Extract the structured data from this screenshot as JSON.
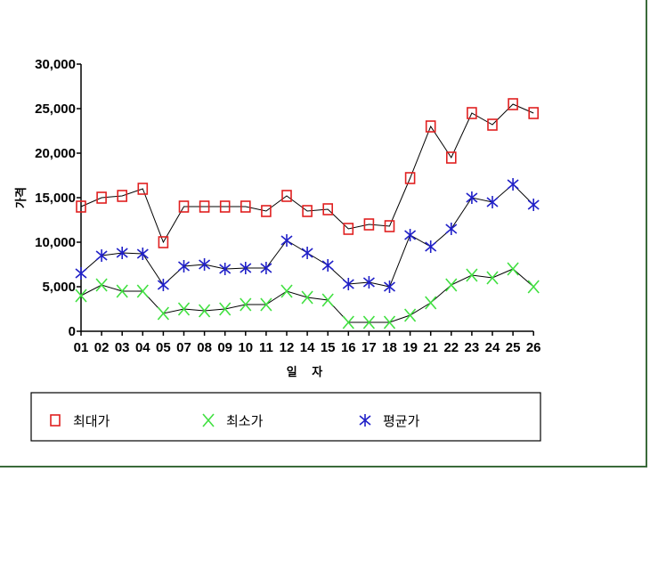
{
  "chart_data": {
    "type": "line",
    "title": "",
    "xlabel": "일 자",
    "ylabel": "가격",
    "categories": [
      "01",
      "02",
      "03",
      "04",
      "05",
      "07",
      "08",
      "09",
      "10",
      "11",
      "12",
      "14",
      "15",
      "16",
      "17",
      "18",
      "19",
      "21",
      "22",
      "23",
      "24",
      "25",
      "26"
    ],
    "ylim": [
      0,
      30000
    ],
    "yticks": [
      0,
      5000,
      10000,
      15000,
      20000,
      25000,
      30000
    ],
    "ytick_labels": [
      "0",
      "5,000",
      "10,000",
      "15,000",
      "20,000",
      "25,000",
      "30,000"
    ],
    "grid": false,
    "legend_position": "bottom",
    "series": [
      {
        "name": "최대가",
        "marker": "square",
        "color": "#e02020",
        "values": [
          14000,
          15000,
          15200,
          16000,
          10000,
          14000,
          14000,
          14000,
          14000,
          13500,
          15200,
          13500,
          13700,
          11500,
          12000,
          11800,
          17200,
          23000,
          19500,
          24500,
          23200,
          25500,
          24500
        ]
      },
      {
        "name": "최소가",
        "marker": "x",
        "color": "#40e040",
        "values": [
          4000,
          5200,
          4500,
          4500,
          2000,
          2500,
          2300,
          2500,
          3000,
          3000,
          4500,
          3800,
          3500,
          1000,
          1000,
          1000,
          1800,
          3200,
          5200,
          6300,
          6000,
          7000,
          5000
        ]
      },
      {
        "name": "평균가",
        "marker": "asterisk",
        "color": "#2020c8",
        "values": [
          6500,
          8500,
          8800,
          8700,
          5200,
          7300,
          7500,
          7000,
          7100,
          7100,
          10200,
          8800,
          7400,
          5300,
          5500,
          5000,
          10800,
          9500,
          11500,
          15000,
          14500,
          16500,
          14200
        ]
      }
    ]
  }
}
